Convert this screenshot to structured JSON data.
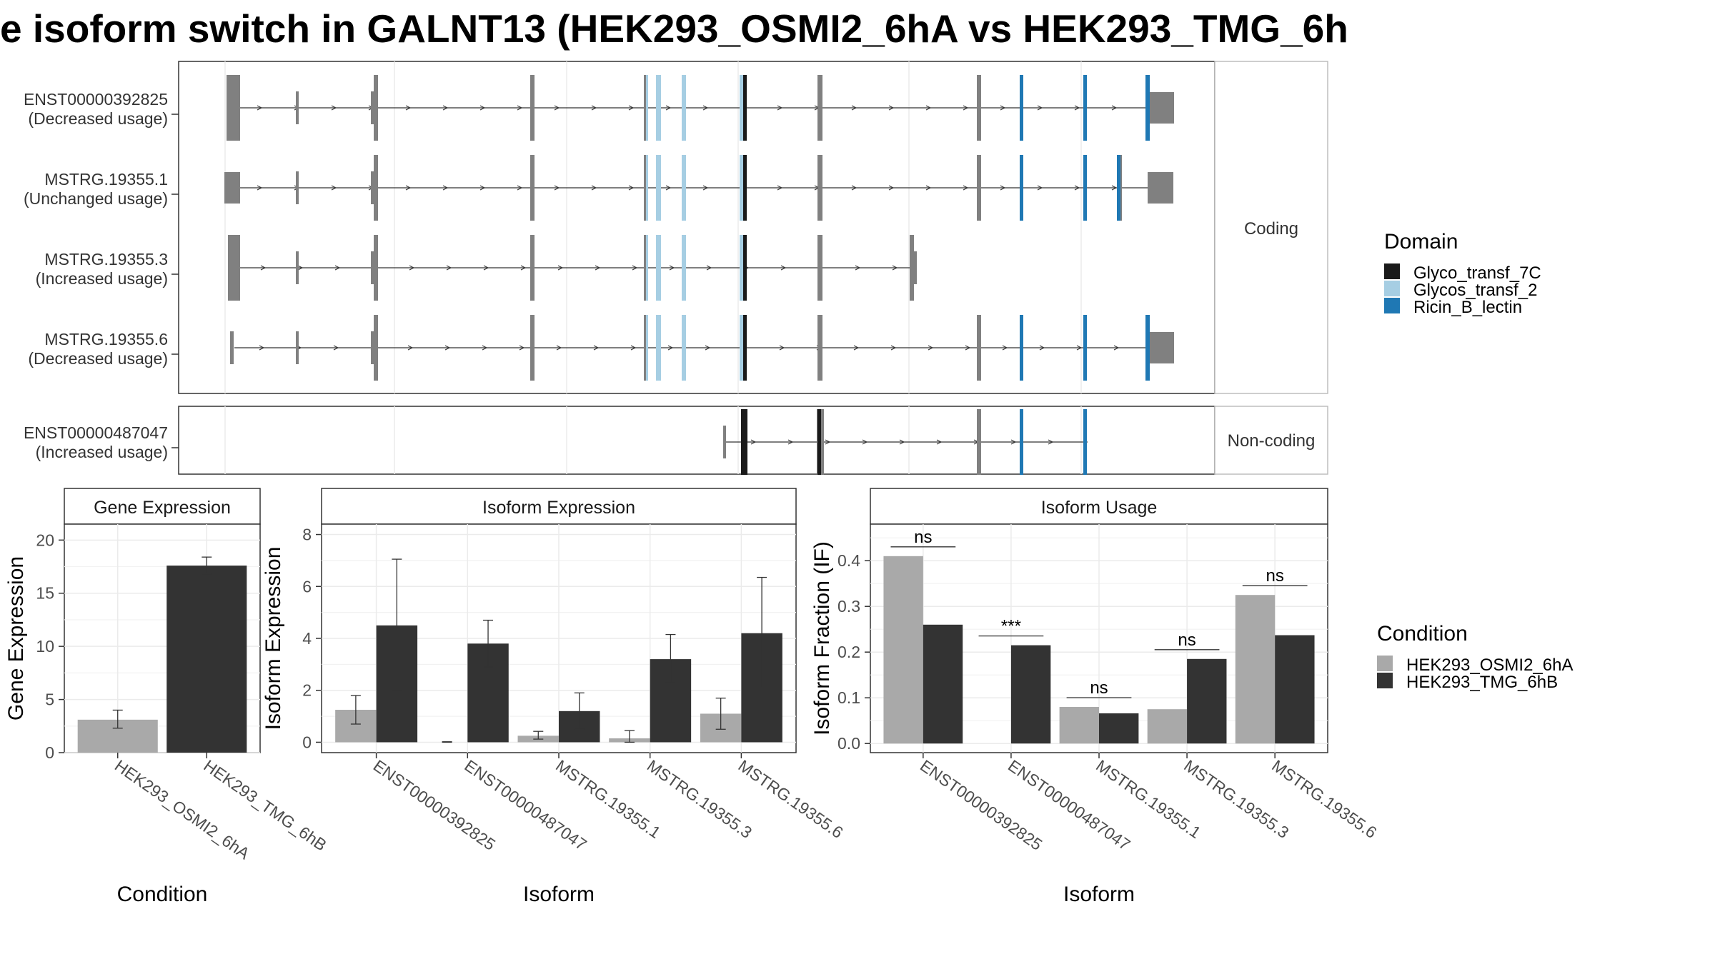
{
  "title": "e isoform switch in GALNT13 (HEK293_OSMI2_6hA vs HEK293_TMG_6h",
  "colors": {
    "cond_a": "#a9a9a9",
    "cond_b": "#333333",
    "domain_glyco7c": "#1a1a1a",
    "domain_glycos2": "#a6cee3",
    "domain_ricin": "#1f78b4",
    "exon": "#808080"
  },
  "transcript_panel": {
    "groups": [
      {
        "label": "Coding",
        "isoforms": [
          {
            "name": "ENST00000392825",
            "status": "(Decreased usage)"
          },
          {
            "name": "MSTRG.19355.1",
            "status": "(Unchanged usage)"
          },
          {
            "name": "MSTRG.19355.3",
            "status": "(Increased usage)"
          },
          {
            "name": "MSTRG.19355.6",
            "status": "(Decreased usage)"
          }
        ]
      },
      {
        "label": "Non-coding",
        "isoforms": [
          {
            "name": "ENST00000487047",
            "status": "(Increased usage)"
          }
        ]
      }
    ],
    "domain_legend": {
      "title": "Domain",
      "items": [
        "Glyco_transf_7C",
        "Glycos_transf_2",
        "Ricin_B_lectin"
      ]
    }
  },
  "chart_data": [
    {
      "type": "bar",
      "title": "Gene Expression",
      "xlabel": "Condition",
      "ylabel": "Gene Expression",
      "categories": [
        "HEK293_OSMI2_6hA",
        "HEK293_TMG_6hB"
      ],
      "values": [
        3.1,
        17.6
      ],
      "error_low": [
        2.3,
        16.8
      ],
      "error_high": [
        4.0,
        18.4
      ],
      "ylim": [
        0,
        21.5
      ],
      "yticks": [
        0,
        5,
        10,
        15,
        20
      ]
    },
    {
      "type": "bar",
      "title": "Isoform Expression",
      "xlabel": "Isoform",
      "ylabel": "Isoform Expression",
      "categories": [
        "ENST00000392825",
        "ENST00000487047",
        "MSTRG.19355.1",
        "MSTRG.19355.3",
        "MSTRG.19355.6"
      ],
      "series": [
        {
          "name": "HEK293_OSMI2_6hA",
          "values": [
            1.25,
            0.0,
            0.25,
            0.15,
            1.1
          ],
          "error_low": [
            0.7,
            0.0,
            0.12,
            0.0,
            0.5
          ],
          "error_high": [
            1.8,
            0.02,
            0.42,
            0.45,
            1.7
          ]
        },
        {
          "name": "HEK293_TMG_6hB",
          "values": [
            4.5,
            3.8,
            1.2,
            3.2,
            4.2
          ],
          "error_low": [
            2.0,
            2.9,
            0.5,
            2.3,
            2.1
          ],
          "error_high": [
            7.05,
            4.7,
            1.9,
            4.15,
            6.35
          ]
        }
      ],
      "ylim": [
        -0.4,
        8.4
      ],
      "yticks": [
        0,
        2,
        4,
        6,
        8
      ]
    },
    {
      "type": "bar",
      "title": "Isoform Usage",
      "xlabel": "Isoform",
      "ylabel": "Isoform Fraction (IF)",
      "categories": [
        "ENST00000392825",
        "ENST00000487047",
        "MSTRG.19355.1",
        "MSTRG.19355.3",
        "MSTRG.19355.6"
      ],
      "series": [
        {
          "name": "HEK293_OSMI2_6hA",
          "values": [
            0.41,
            0.0,
            0.08,
            0.075,
            0.325
          ]
        },
        {
          "name": "HEK293_TMG_6hB",
          "values": [
            0.26,
            0.215,
            0.066,
            0.185,
            0.237
          ]
        }
      ],
      "annotations": [
        "ns",
        "***",
        "ns",
        "ns",
        "ns"
      ],
      "ylim": [
        -0.02,
        0.48
      ],
      "yticks": [
        0.0,
        0.1,
        0.2,
        0.3,
        0.4
      ],
      "ytick_labels": [
        "0.0",
        "0.1",
        "0.2",
        "0.3",
        "0.4"
      ],
      "legend": {
        "title": "Condition",
        "placement": "right",
        "items": [
          "HEK293_OSMI2_6hA",
          "HEK293_TMG_6hB"
        ]
      }
    }
  ]
}
